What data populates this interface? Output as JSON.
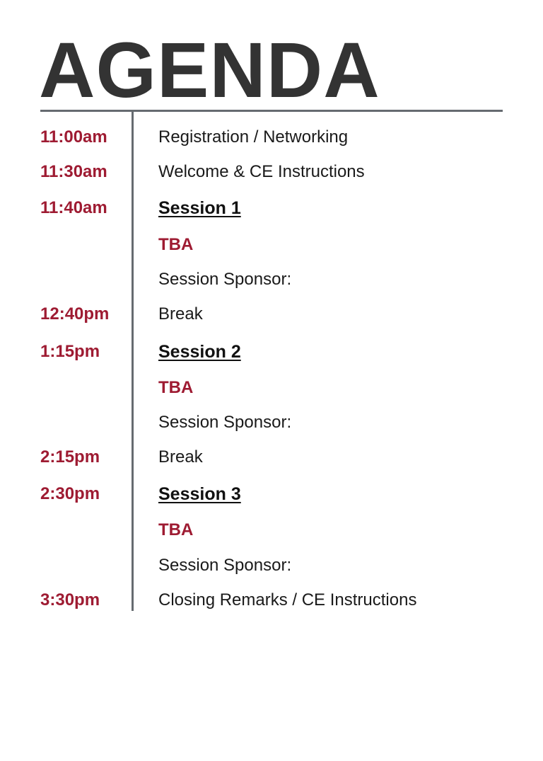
{
  "title": "AGENDA",
  "colors": {
    "accent": "#9e1b32",
    "title": "#333333",
    "rule": "#666b70",
    "text": "#1a1a1a"
  },
  "rows": [
    {
      "time": "11:00am",
      "text": "Registration / Networking",
      "style": "plain"
    },
    {
      "time": "11:30am",
      "text": "Welcome & CE Instructions",
      "style": "plain"
    },
    {
      "time": "11:40am",
      "text": "Session 1",
      "style": "session"
    },
    {
      "time": "",
      "text": "TBA",
      "style": "tba"
    },
    {
      "time": "",
      "text": "Session Sponsor:",
      "style": "plain"
    },
    {
      "time": "12:40pm",
      "text": "Break",
      "style": "plain"
    },
    {
      "time": "1:15pm",
      "text": "Session 2",
      "style": "session"
    },
    {
      "time": "",
      "text": "TBA",
      "style": "tba"
    },
    {
      "time": "",
      "text": "Session Sponsor:",
      "style": "plain"
    },
    {
      "time": "2:15pm",
      "text": "Break",
      "style": "plain"
    },
    {
      "time": "2:30pm",
      "text": "Session 3",
      "style": "session"
    },
    {
      "time": "",
      "text": "TBA",
      "style": "tba"
    },
    {
      "time": "",
      "text": "Session Sponsor:",
      "style": "plain"
    },
    {
      "time": "3:30pm",
      "text": "Closing Remarks / CE Instructions",
      "style": "plain"
    }
  ]
}
